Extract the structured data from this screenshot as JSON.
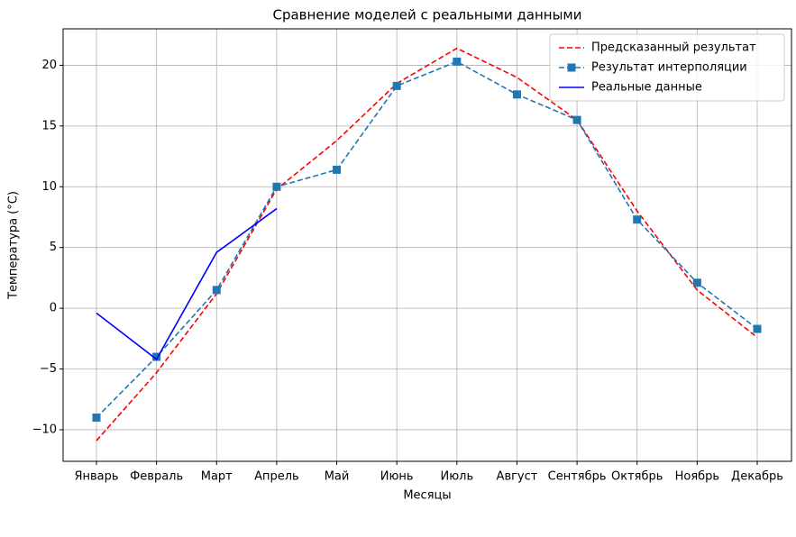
{
  "chart_data": {
    "type": "line",
    "title": "Сравнение моделей с реальными данными",
    "xlabel": "Месяцы",
    "ylabel": "Температура (°C)",
    "categories": [
      "Январь",
      "Февраль",
      "Март",
      "Апрель",
      "Май",
      "Июнь",
      "Июль",
      "Август",
      "Сентябрь",
      "Октябрь",
      "Ноябрь",
      "Декабрь"
    ],
    "series": [
      {
        "name": "Предсказанный результат",
        "color": "#ff0000",
        "dash": true,
        "marker": false,
        "values": [
          -10.9,
          -5.3,
          1.2,
          9.8,
          13.8,
          18.5,
          21.4,
          19.0,
          15.5,
          8.0,
          1.5,
          -2.4
        ]
      },
      {
        "name": "Результат интерполяции",
        "color": "#1f77b4",
        "dash": true,
        "marker": true,
        "values": [
          -9.0,
          -4.0,
          1.5,
          10.0,
          11.4,
          18.3,
          20.3,
          17.6,
          15.5,
          7.3,
          2.1,
          -1.7
        ]
      },
      {
        "name": "Реальные данные",
        "color": "#0000ff",
        "dash": false,
        "marker": false,
        "values": [
          -0.4,
          -4.2,
          4.6,
          8.2,
          null,
          null,
          null,
          null,
          null,
          null,
          null,
          null
        ]
      }
    ],
    "ylim": [
      -12.6,
      23
    ],
    "yticks": [
      {
        "value": -10,
        "label": "−10"
      },
      {
        "value": -5,
        "label": "−5"
      },
      0,
      5,
      10,
      15,
      20
    ],
    "grid": true,
    "legend": "upper right"
  }
}
